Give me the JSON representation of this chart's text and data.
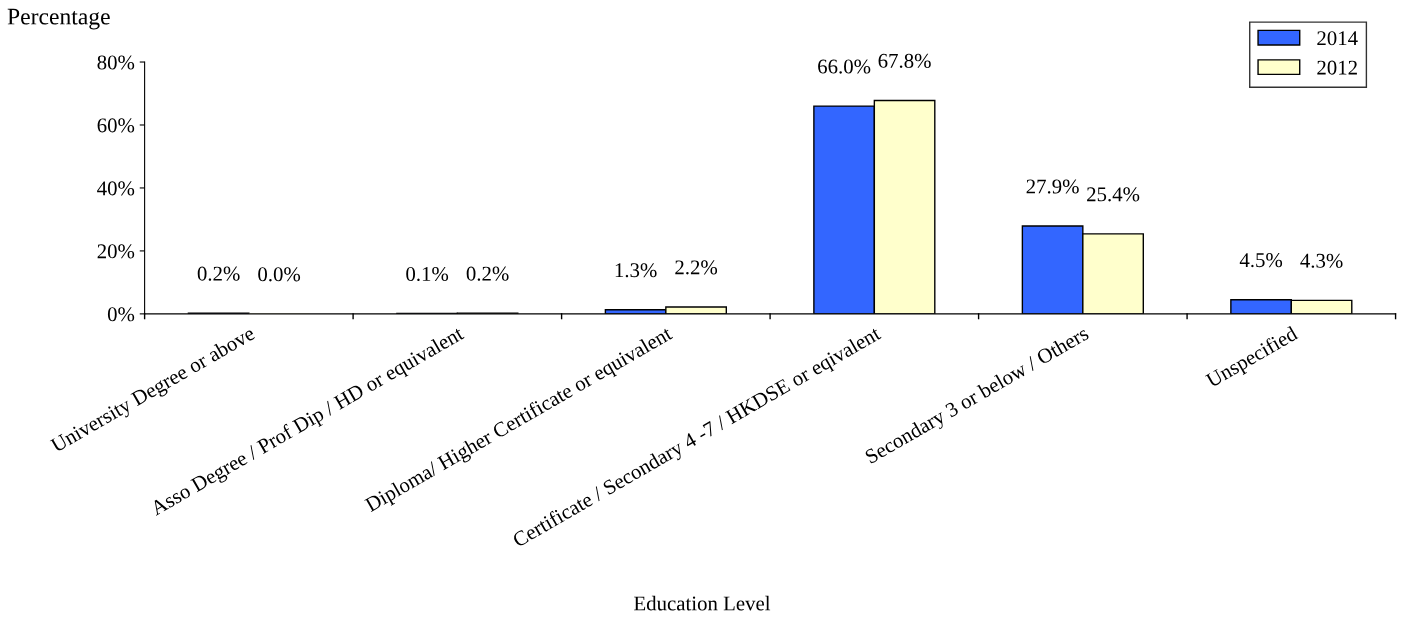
{
  "chart_data": {
    "type": "bar",
    "xlabel": "Education Level",
    "ylabel": "Percentage",
    "categories": [
      "University Degree or above",
      "Asso Degree / Prof Dip / HD or equivalent",
      "Diploma/ Higher Certificate or equivalent",
      "Certificate / Secondary 4 -7 / HKDSE or eqivalent",
      "Secondary 3 or below / Others",
      "Unspecified"
    ],
    "series": [
      {
        "name": "2014",
        "color": "#3366ff",
        "values": [
          0.2,
          0.1,
          1.3,
          66.0,
          27.9,
          4.5
        ],
        "value_labels": [
          "0.2%",
          "0.1%",
          "1.3%",
          "66.0%",
          "27.9%",
          "4.5%"
        ]
      },
      {
        "name": "2012",
        "color": "#ffffcc",
        "values": [
          0.0,
          0.2,
          2.2,
          67.8,
          25.4,
          4.3
        ],
        "value_labels": [
          "0.0%",
          "0.2%",
          "2.2%",
          "67.8%",
          "25.4%",
          "4.3%"
        ]
      }
    ],
    "ylim": [
      0,
      80
    ],
    "yticks": [
      {
        "value": 0,
        "label": "0%"
      },
      {
        "value": 20,
        "label": "20%"
      },
      {
        "value": 40,
        "label": "40%"
      },
      {
        "value": 60,
        "label": "60%"
      },
      {
        "value": 80,
        "label": "80%"
      }
    ],
    "grid": false,
    "legend": "top right"
  }
}
